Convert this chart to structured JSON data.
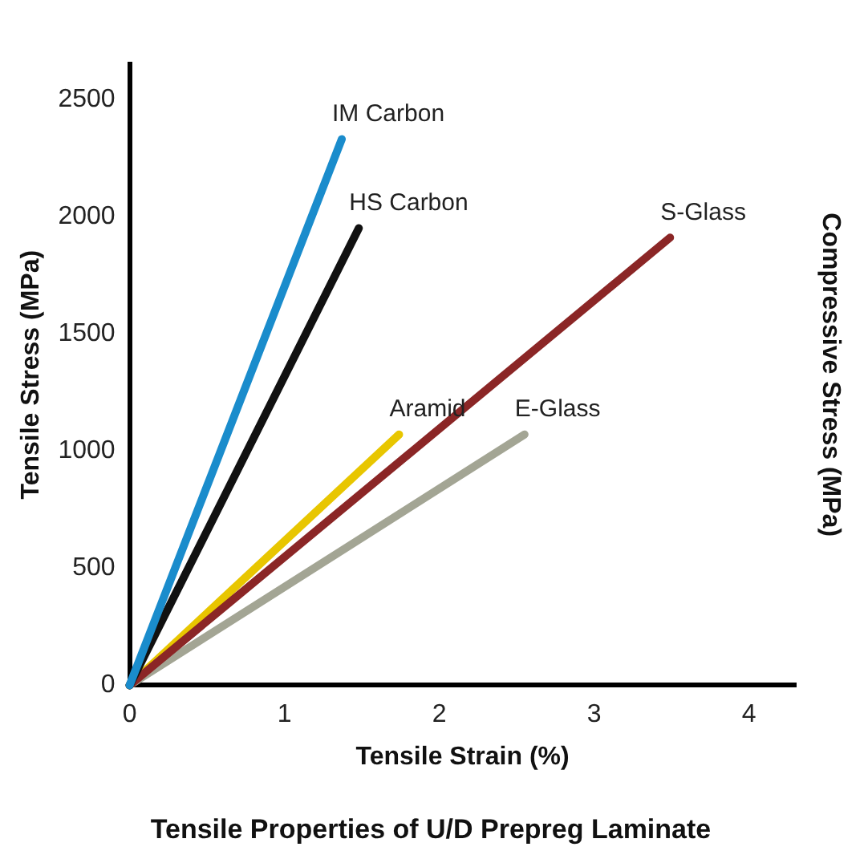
{
  "chart_data": {
    "type": "line",
    "title": "Tensile Properties of U/D Prepreg Laminate",
    "xlabel": "Tensile Strain (%)",
    "ylabel": "Tensile Stress (MPa)",
    "y2label": "Compressive Stress (MPa)",
    "xlim": [
      0,
      4.3
    ],
    "xticks": [
      0,
      1,
      2,
      3,
      4
    ],
    "ylim": [
      0,
      2650
    ],
    "yticks": [
      0,
      500,
      1000,
      1500,
      2000,
      2500
    ],
    "grid": false,
    "legend": false,
    "marker": "none",
    "line_style": "solid",
    "series": [
      {
        "name": "IM Carbon",
        "color": "#1a8ccc",
        "x": [
          0,
          1.37
        ],
        "values": [
          0,
          2330
        ]
      },
      {
        "name": "HS Carbon",
        "color": "#111111",
        "x": [
          0,
          1.48
        ],
        "values": [
          0,
          1950
        ]
      },
      {
        "name": "S-Glass",
        "color": "#8b2626",
        "x": [
          0,
          3.49
        ],
        "values": [
          0,
          1910
        ]
      },
      {
        "name": "Aramid",
        "color": "#e8c600",
        "x": [
          0,
          1.74
        ],
        "values": [
          0,
          1070
        ]
      },
      {
        "name": "E-Glass",
        "color": "#a3a594",
        "x": [
          0,
          2.55
        ],
        "values": [
          0,
          1070
        ]
      }
    ]
  }
}
